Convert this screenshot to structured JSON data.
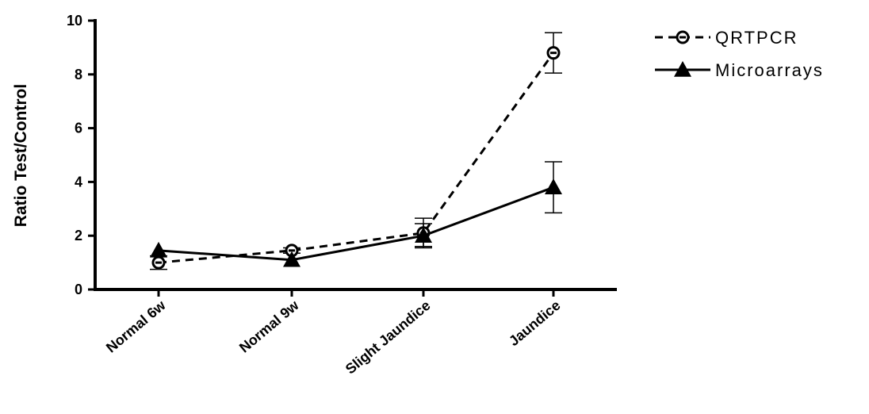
{
  "chart_data": {
    "type": "line",
    "title": "",
    "xlabel": "",
    "ylabel": "Ratio Test/Control",
    "categories": [
      "Normal 6w",
      "Normal 9w",
      "Slight Jaundice",
      "Jaundice"
    ],
    "ylim": [
      0,
      10
    ],
    "yticks": [
      0,
      2,
      4,
      6,
      8,
      10
    ],
    "grid": false,
    "legend_position": "top-right",
    "series": [
      {
        "name": "QRTPCR",
        "values": [
          1.0,
          1.45,
          2.1,
          8.8
        ],
        "error_lower": [
          0.25,
          0.1,
          0.5,
          0.75
        ],
        "error_upper": [
          0.25,
          0.1,
          0.55,
          0.75
        ],
        "line_style": "dashed",
        "marker": "open-circle",
        "color": "#000000"
      },
      {
        "name": "Microarrays",
        "values": [
          1.45,
          1.1,
          2.0,
          3.8
        ],
        "error_lower": [
          0.0,
          0.0,
          0.45,
          0.95
        ],
        "error_upper": [
          0.0,
          0.0,
          0.45,
          0.95
        ],
        "line_style": "solid",
        "marker": "filled-triangle",
        "color": "#000000"
      }
    ]
  }
}
